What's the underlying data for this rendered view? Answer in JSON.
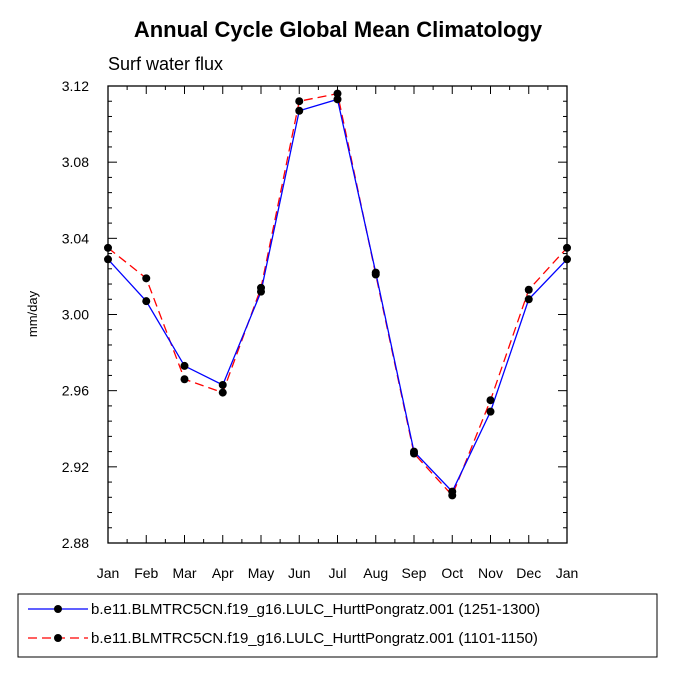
{
  "chart_data": {
    "type": "line",
    "title": "Annual Cycle Global Mean Climatology",
    "subtitle": "Surf water flux",
    "xlabel": "",
    "ylabel": "mm/day",
    "categories": [
      "Jan",
      "Feb",
      "Mar",
      "Apr",
      "May",
      "Jun",
      "Jul",
      "Aug",
      "Sep",
      "Oct",
      "Nov",
      "Dec",
      "Jan"
    ],
    "ylim": [
      2.88,
      3.12
    ],
    "yticks": [
      "2.88",
      "2.92",
      "2.96",
      "3.00",
      "3.04",
      "3.08",
      "3.12"
    ],
    "grid": false,
    "legend_position": "bottom",
    "series": [
      {
        "name": "b.e11.BLMTRC5CN.f19_g16.LULC_HurttPongratz.001 (1251-1300)",
        "color": "#0000ff",
        "dash": "solid",
        "values": [
          3.029,
          3.007,
          2.973,
          2.963,
          3.012,
          3.107,
          3.113,
          3.022,
          2.928,
          2.907,
          2.949,
          3.008,
          3.029
        ]
      },
      {
        "name": "b.e11.BLMTRC5CN.f19_g16.LULC_HurttPongratz.001 (1101-1150)",
        "color": "#ff0000",
        "dash": "dashed",
        "values": [
          3.035,
          3.019,
          2.966,
          2.959,
          3.014,
          3.112,
          3.116,
          3.021,
          2.927,
          2.905,
          2.955,
          3.013,
          3.035
        ]
      }
    ]
  }
}
